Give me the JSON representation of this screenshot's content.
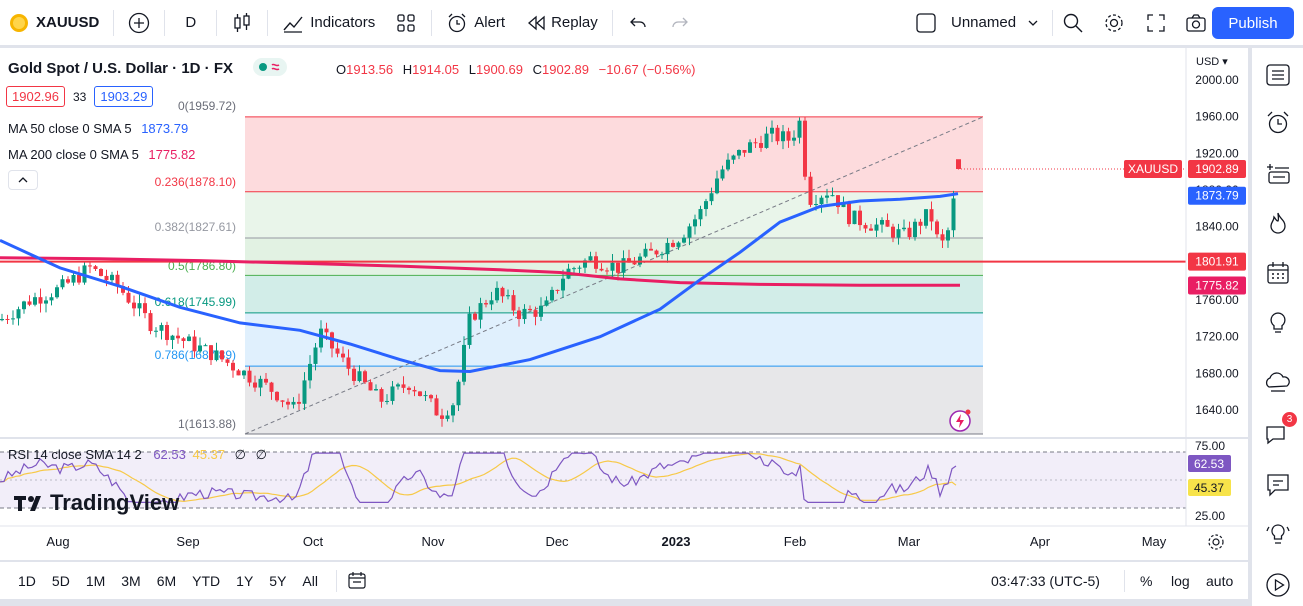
{
  "toolbar": {
    "symbol": "XAUUSD",
    "interval": "D",
    "indicators_label": "Indicators",
    "alert_label": "Alert",
    "replay_label": "Replay",
    "layout_name": "Unnamed",
    "publish_label": "Publish"
  },
  "legend": {
    "title": "Gold Spot / U.S. Dollar · 1D · FX",
    "open_label": "O",
    "open": "1913.56",
    "high_label": "H",
    "high": "1914.05",
    "low_label": "L",
    "low": "1900.69",
    "close_label": "C",
    "close": "1902.89",
    "change": "−10.67 (−0.56%)",
    "bid": "1902.96",
    "spread": "33",
    "ask": "1903.29",
    "ma50_label": "MA 50 close 0 SMA 5",
    "ma50_value": "1873.79",
    "ma200_label": "MA 200 close 0 SMA 5",
    "ma200_value": "1775.82"
  },
  "fib": {
    "l0": "0(1959.72)",
    "l236": "0.236(1878.10)",
    "l382": "0.382(1827.61)",
    "l5": "0.5(1786.80)",
    "l618": "0.618(1745.99)",
    "l786": "0.786(1687.89)",
    "l1": "1(1613.88)"
  },
  "price_axis": {
    "currency": "USD",
    "ticks": [
      "2000.00",
      "1960.00",
      "1920.00",
      "1880.00",
      "1840.00",
      "1800.00",
      "1760.00",
      "1720.00",
      "1680.00",
      "1640.00"
    ],
    "tag_symbol": "XAUUSD",
    "tag_price": "1902.89",
    "tag_ma50": "1873.79",
    "tag_hline": "1801.91",
    "tag_ma200": "1775.82"
  },
  "rsi": {
    "label": "RSI 14 close SMA 14 2",
    "value": "62.53",
    "sma_value": "45.37",
    "na1": "∅",
    "na2": "∅",
    "tick_hi": "75.00",
    "tick_lo": "25.00",
    "tag_rsi": "62.53",
    "tag_sma": "45.37"
  },
  "time_axis": [
    "Aug",
    "Sep",
    "Oct",
    "Nov",
    "Dec",
    "2023",
    "Feb",
    "Mar",
    "Apr",
    "May"
  ],
  "watermark": "TradingView",
  "ranges": [
    "1D",
    "5D",
    "1M",
    "3M",
    "6M",
    "YTD",
    "1Y",
    "5Y",
    "All"
  ],
  "clock": "03:47:33 (UTC-5)",
  "scale_opts": {
    "pct": "%",
    "log": "log",
    "auto": "auto"
  },
  "notifications": "3",
  "colors": {
    "accent": "#2962ff",
    "up": "#089981",
    "down": "#f23645",
    "ma50": "#2962ff",
    "ma200": "#e91e63",
    "hline": "#f23645"
  }
}
